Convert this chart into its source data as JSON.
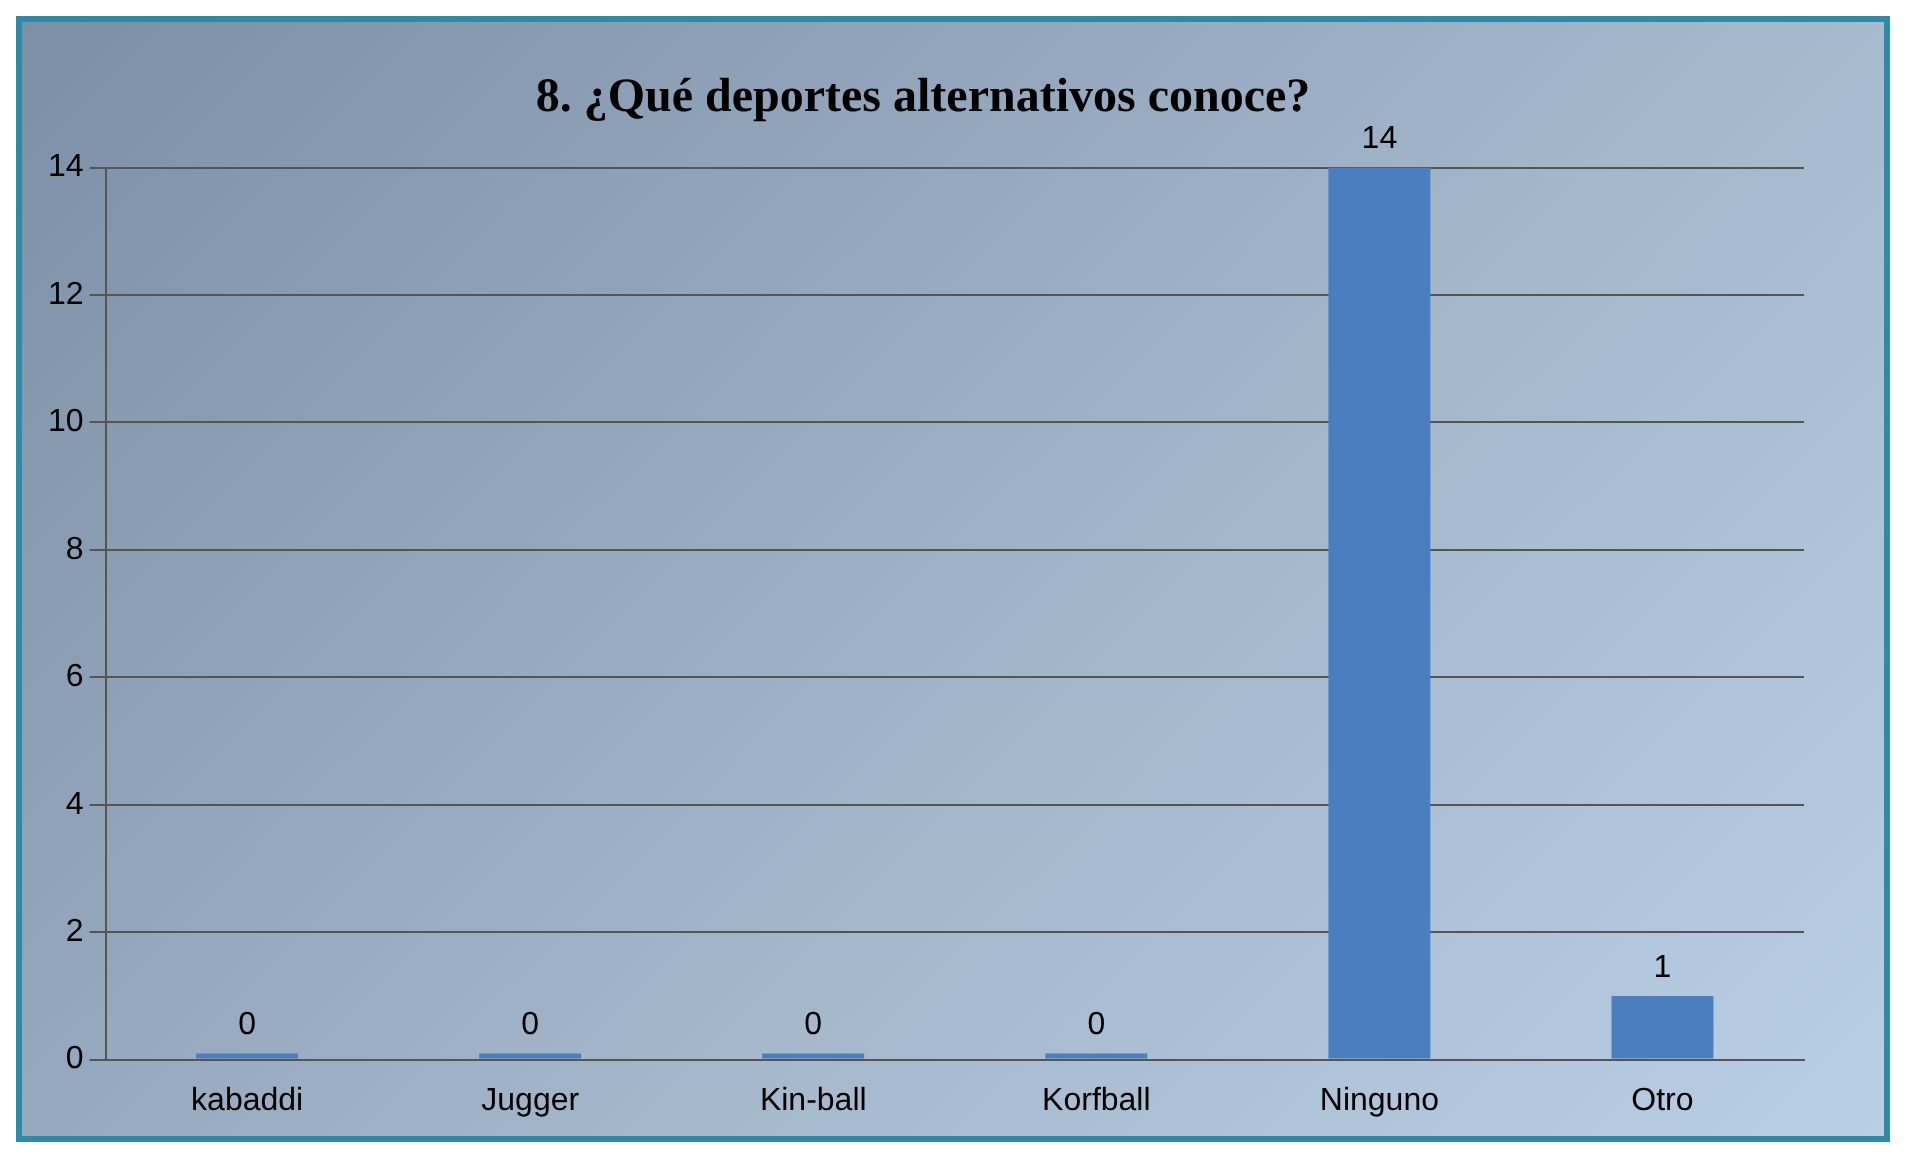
{
  "chart_data": {
    "type": "bar",
    "title": "8. ¿Qué deportes alternativos conoce?",
    "categories": [
      "kabaddi",
      "Jugger",
      "Kin-ball",
      "Korfball",
      "Ninguno",
      "Otro"
    ],
    "values": [
      0,
      0,
      0,
      0,
      14,
      1
    ],
    "color": "#4a7ebf",
    "ylim": [
      0,
      14
    ],
    "yticks": [
      0,
      2,
      4,
      6,
      8,
      10,
      12,
      14
    ],
    "grid": "y",
    "data_labels": true
  }
}
